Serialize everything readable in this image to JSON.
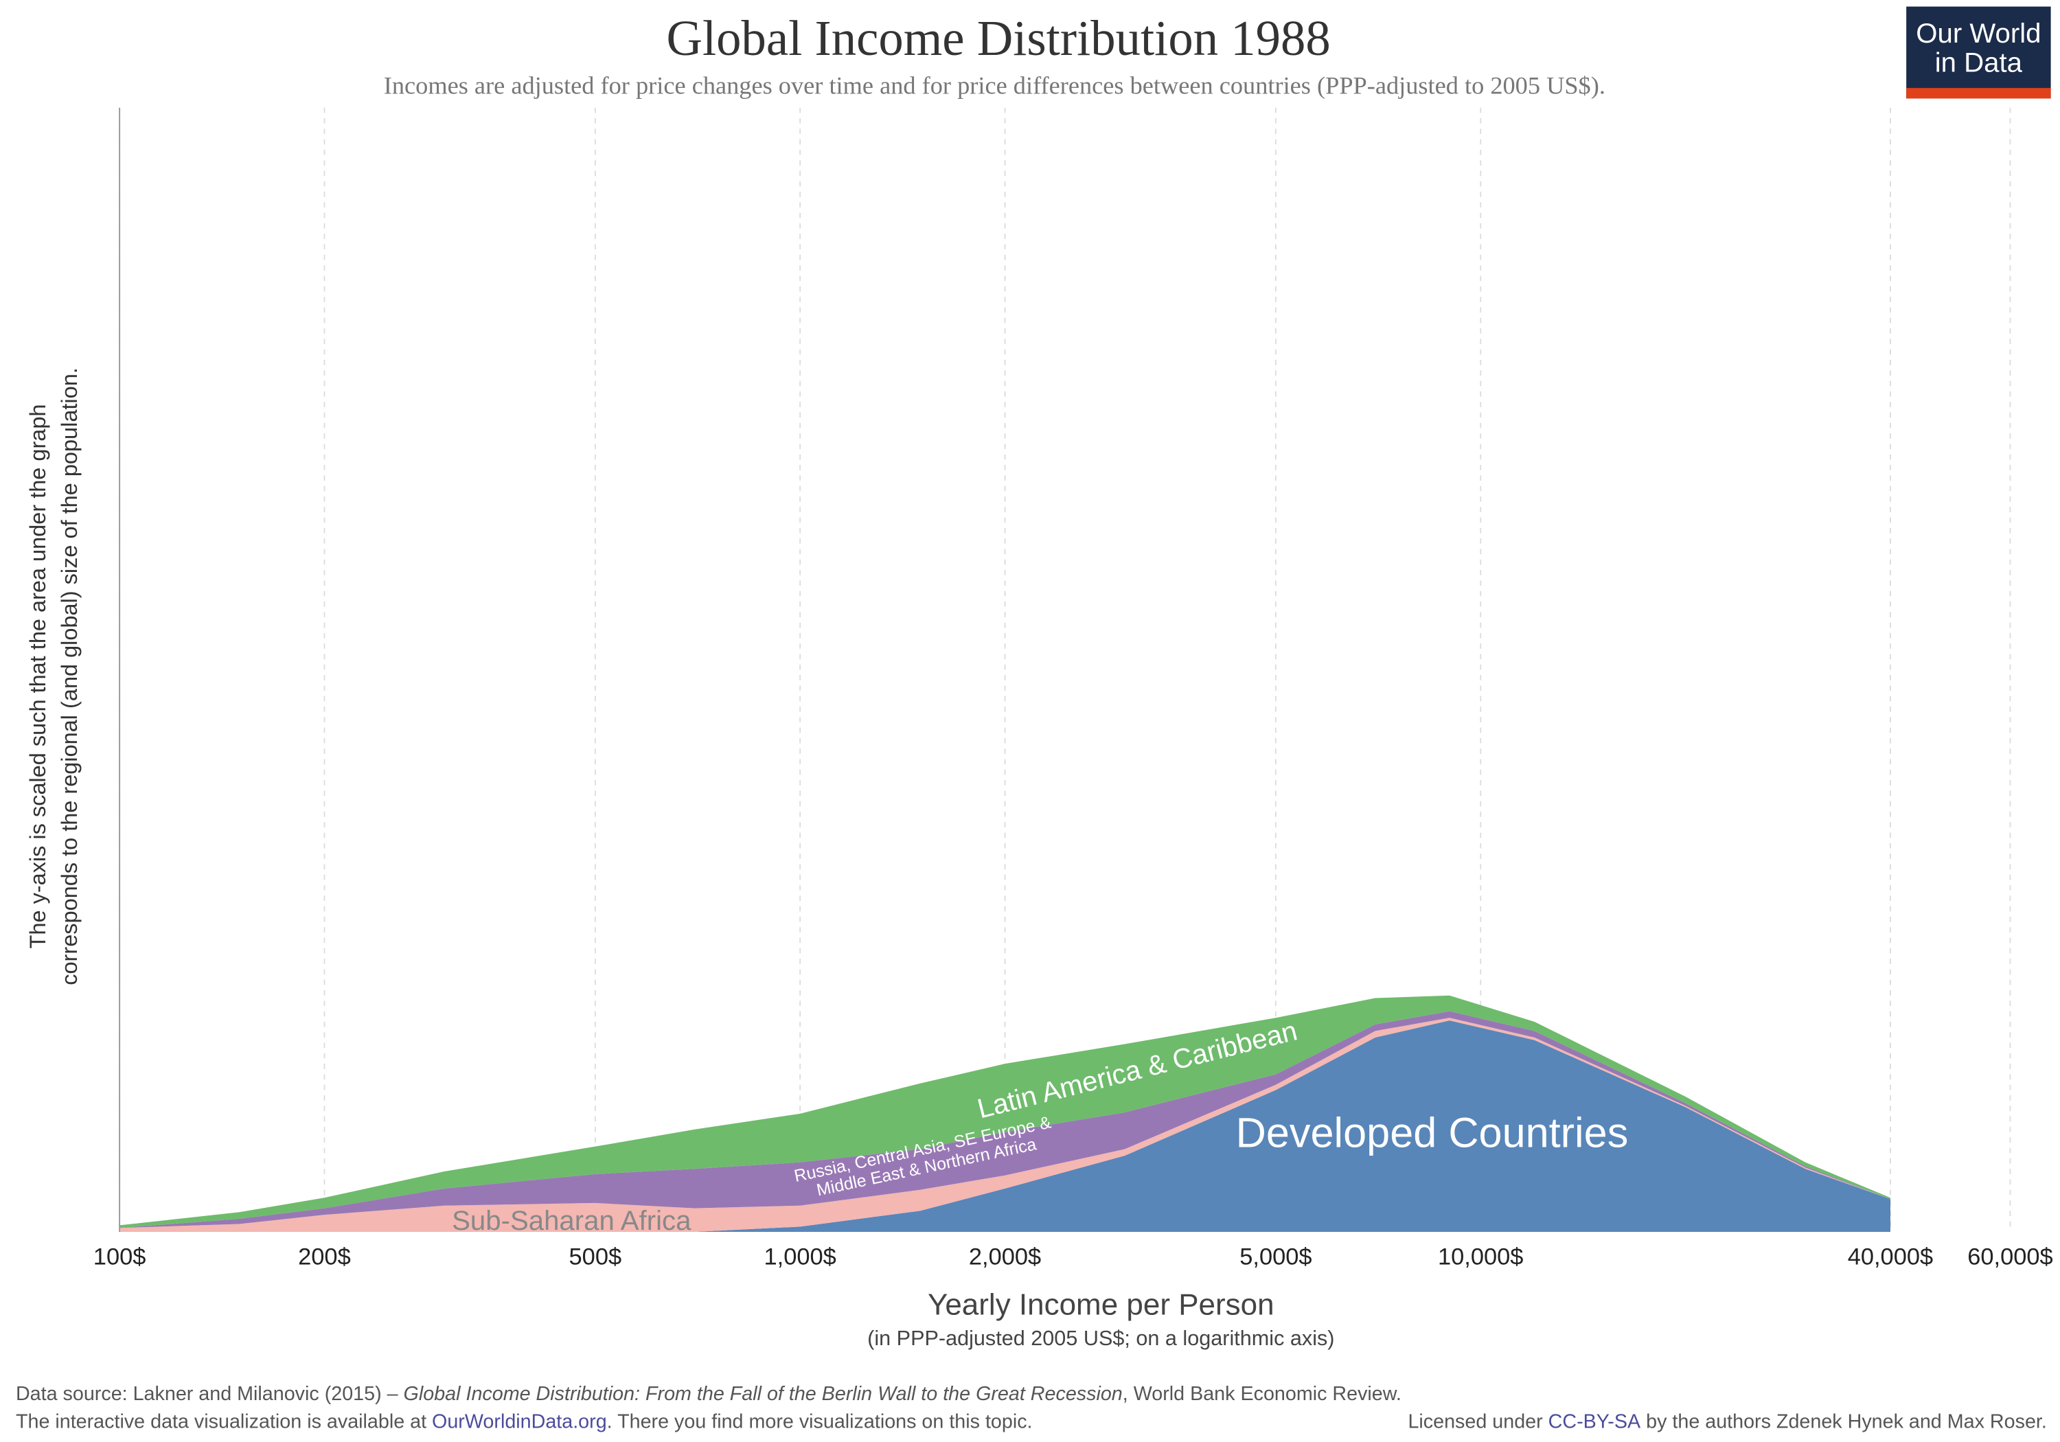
{
  "chart_data": {
    "type": "stacked_area",
    "title": "Global Income Distribution 1988",
    "subtitle": "Incomes are adjusted for price changes over time and for price differences between countries (PPP-adjusted to 2005 US$).",
    "logo": [
      "Our World",
      "in Data"
    ],
    "x_label": "Yearly Income per Person",
    "x_sublabel": "(in PPP-adjusted 2005 US$; on a logarithmic axis)",
    "y_label": [
      "The y-axis is scaled such that the area under the graph",
      "corresponds to the regional (and global) size of the population."
    ],
    "x_log": true,
    "grid": true,
    "xlim": [
      100,
      60000
    ],
    "ylim": [
      0,
      856
    ],
    "xticks": [
      {
        "value": 100,
        "label": "100$"
      },
      {
        "value": 200,
        "label": "200$"
      },
      {
        "value": 500,
        "label": "500$"
      },
      {
        "value": 1000,
        "label": "1,000$"
      },
      {
        "value": 2000,
        "label": "2,000$"
      },
      {
        "value": 5000,
        "label": "5,000$"
      },
      {
        "value": 10000,
        "label": "10,000$"
      },
      {
        "value": 40000,
        "label": "40,000$"
      },
      {
        "value": 60000,
        "label": "60,000$"
      }
    ],
    "x": [
      100,
      150,
      200,
      300,
      500,
      700,
      1000,
      1500,
      2000,
      3000,
      5000,
      7000,
      9000,
      12000,
      20000,
      30000,
      40000
    ],
    "series": [
      {
        "name": "Developed Countries",
        "color": "#5886b9",
        "values": [
          0,
          0,
          0,
          0,
          0,
          0,
          4,
          16,
          33,
          58,
          108,
          148,
          161,
          146,
          95,
          48,
          25
        ]
      },
      {
        "name": "Sub-Saharan Africa",
        "color": "#f4b7b2",
        "values": [
          3,
          6,
          13,
          20,
          22,
          18,
          16,
          16,
          10,
          5,
          4,
          5,
          2,
          2,
          1,
          1,
          0
        ]
      },
      {
        "name": "Russia, Central Asia, SE Europe & Middle East & Northern Africa",
        "color": "#9878b4",
        "values": [
          0,
          4,
          5,
          13,
          22,
          30,
          33,
          31,
          33,
          28,
          8,
          5,
          5,
          5,
          2,
          1,
          0
        ]
      },
      {
        "name": "Latin America & Caribbean",
        "color": "#6ebb6c",
        "values": [
          2,
          5,
          8,
          13,
          21,
          30,
          37,
          50,
          52,
          52,
          43,
          20,
          12,
          7,
          5,
          3,
          1
        ]
      }
    ],
    "footer": {
      "source_prefix": "Data source: Lakner and Milanovic (2015) – ",
      "source_title": "Global Income Distribution: From the Fall of the Berlin Wall to the Great Recession",
      "source_suffix": ", World Bank Economic Review.",
      "line2_prefix": "The interactive data visualization is available at ",
      "line2_link": "OurWorldinData.org",
      "line2_suffix": ". There you find more visualizations on this topic.",
      "license_prefix": "Licensed under ",
      "license_link": "CC-BY-SA",
      "license_suffix": " by the authors Zdenek Hynek and Max Roser."
    }
  }
}
